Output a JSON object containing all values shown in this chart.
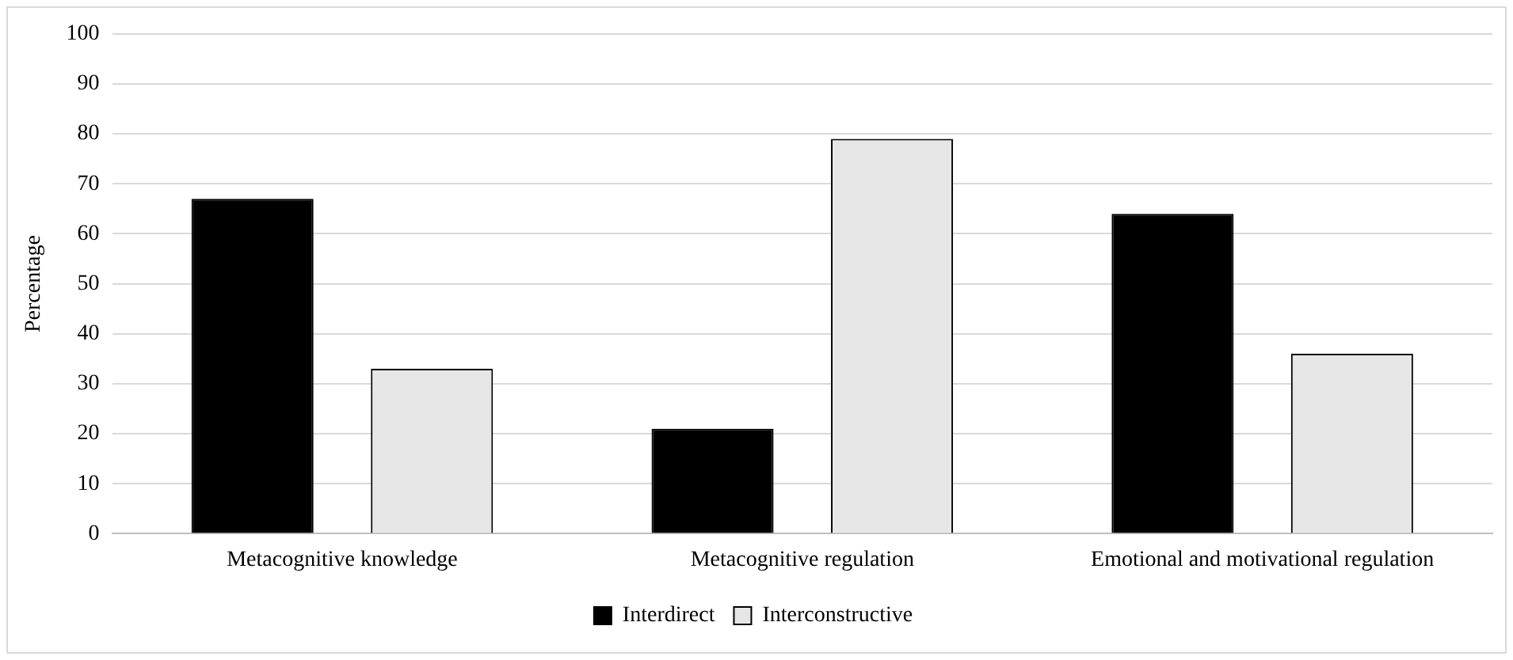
{
  "chart_data": {
    "type": "bar",
    "ylabel": "Percentage",
    "categories": [
      "Metacognitive knowledge",
      "Metacognitive regulation",
      "Emotional and motivational regulation"
    ],
    "series": [
      {
        "name": "Interdirect",
        "color": "#000000",
        "values": [
          67,
          21,
          64
        ]
      },
      {
        "name": "Interconstructive",
        "color": "#e7e6e6",
        "values": [
          33,
          79,
          36
        ]
      }
    ],
    "ylim": [
      0,
      100
    ],
    "yticks": [
      0,
      10,
      20,
      30,
      40,
      50,
      60,
      70,
      80,
      90,
      100
    ],
    "grid": "y",
    "legend": "bottom"
  }
}
